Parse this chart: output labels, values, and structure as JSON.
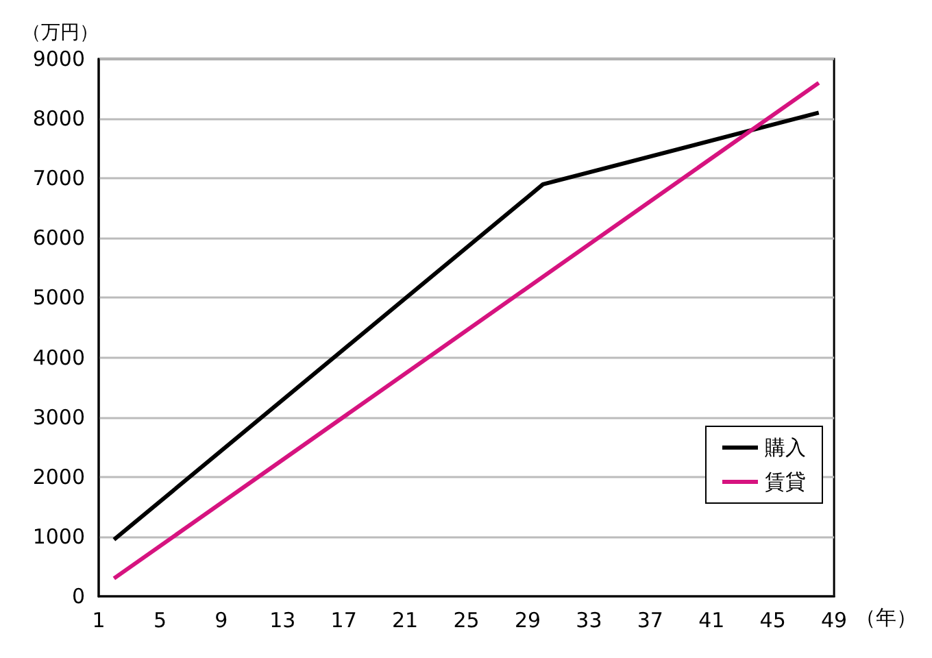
{
  "chart_data": {
    "type": "line",
    "ylabel": "（万円）",
    "xlabel": "（年）",
    "xlim": [
      1,
      49
    ],
    "xticks": [
      1,
      5,
      9,
      13,
      17,
      21,
      25,
      29,
      33,
      37,
      41,
      45,
      49
    ],
    "ylim": [
      0,
      9000
    ],
    "yticks": [
      0,
      1000,
      2000,
      3000,
      4000,
      5000,
      6000,
      7000,
      8000,
      9000
    ],
    "grid": "y",
    "legend": "bottom right",
    "marker": "none",
    "line_style": "solid",
    "series": [
      {
        "name": "購入",
        "color": "#000000",
        "x": [
          2,
          30,
          48
        ],
        "values": [
          950,
          6900,
          8100
        ]
      },
      {
        "name": "賃貸",
        "color": "#d6137f",
        "x": [
          2,
          48
        ],
        "values": [
          300,
          8600
        ]
      }
    ]
  }
}
